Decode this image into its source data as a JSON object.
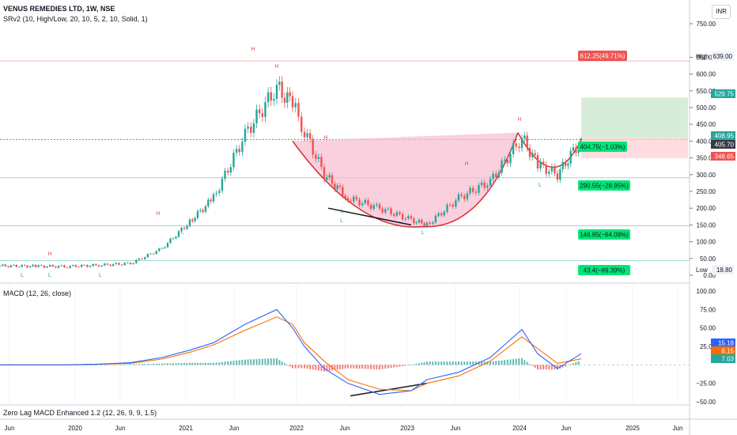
{
  "header": {
    "title": "VENUS REMEDIES LTD, 1W, NSE",
    "indicator": "SRv2 (10, High/Low, 20, 10, 5, 2, 10, Solid, 1)",
    "currency": "INR"
  },
  "macd_header": "MACD (12, 26, close)",
  "zlmacd_header": "Zero Lag MACD Enhanced 1.2 (12, 26, 9, 9, 1.5)",
  "colors": {
    "up": "#26a69a",
    "down": "#ef5350",
    "blue": "#2962ff",
    "orange": "#ff6d00",
    "cup": "#e91e63",
    "cup_fill": "#f8bbd0",
    "target_fill": "#c8e6c9",
    "stop_fill": "#ffcdd2"
  },
  "price_axis": {
    "ticks": [
      "750.00",
      "650.00",
      "600.00",
      "550.00",
      "500.00",
      "450.00",
      "400.00",
      "350.00",
      "300.00",
      "250.00",
      "200.00",
      "150.00",
      "100.00",
      "50.00",
      "0.00"
    ],
    "high_label": "High",
    "high_value": "639.00",
    "low_label": "Low",
    "low_value": "18.80",
    "tags": [
      {
        "value": "529.75",
        "color": "#26a69a"
      },
      {
        "value": "408.95",
        "color": "#26a69a"
      },
      {
        "value": "405.70",
        "color": "#363a45"
      },
      {
        "value": "348.65",
        "color": "#ef5350"
      },
      {
        "value": "15.18",
        "color": "#2962ff"
      },
      {
        "value": "8.15",
        "color": "#ff6d00"
      },
      {
        "value": "7.03",
        "color": "#26a69a"
      }
    ]
  },
  "macd_axis": {
    "ticks": [
      "100.00",
      "75.00",
      "50.00",
      "25.00",
      "−25.00",
      "−50.00"
    ]
  },
  "time_axis": [
    "Jun",
    "2020",
    "Jun",
    "2021",
    "Jun",
    "2022",
    "Jun",
    "2023",
    "Jun",
    "2024",
    "Jun",
    "2025",
    "Jun"
  ],
  "annotations": {
    "target": "612.25(49.71%)",
    "entry": "404.75(−1.03%)",
    "levels": [
      "290.55(−28.95%)",
      "146.85(−64.09%)",
      "43.4(−89.39%)"
    ],
    "high_markers": [
      "H",
      "H",
      "H",
      "H",
      "H",
      "H",
      "H"
    ],
    "low_markers": [
      "L",
      "L",
      "L",
      "L",
      "L",
      "L",
      "L",
      "L"
    ]
  },
  "chart_data": {
    "type": "line",
    "title": "VENUS REMEDIES LTD, 1W, NSE",
    "xlabel": "",
    "ylabel": "",
    "x": [
      "2019-06",
      "2019-09",
      "2019-12",
      "2020-03",
      "2020-06",
      "2020-09",
      "2020-12",
      "2021-03",
      "2021-06",
      "2021-08",
      "2021-10",
      "2021-12",
      "2022-03",
      "2022-06",
      "2022-09",
      "2022-12",
      "2023-03",
      "2023-06",
      "2023-09",
      "2023-12",
      "2024-03",
      "2024-05",
      "2024-07"
    ],
    "series": [
      {
        "values": [
          28,
          27,
          26,
          30,
          35,
          80,
          160,
          230,
          420,
          560,
          510,
          430,
          300,
          230,
          200,
          165,
          150,
          230,
          280,
          410,
          330,
          300,
          405
        ]
      }
    ],
    "ylim": [
      0,
      750
    ],
    "high": 639,
    "low": 18.8,
    "last": 405.7,
    "target": 612.25,
    "stop": 348.65,
    "entry": 404.75,
    "take_profit_zone": [
      408.95,
      529.75
    ],
    "macd": {
      "name": "MACD (12, 26, close)",
      "macd_line": [
        0,
        0,
        0,
        1,
        3,
        10,
        20,
        30,
        55,
        75,
        50,
        25,
        -5,
        -25,
        -40,
        -35,
        -20,
        -10,
        10,
        48,
        15,
        -5,
        15.18
      ],
      "signal_line": [
        0,
        0,
        0,
        1,
        2,
        8,
        17,
        27,
        47,
        65,
        55,
        30,
        5,
        -20,
        -33,
        -35,
        -25,
        -15,
        5,
        38,
        22,
        2,
        8.15
      ],
      "histogram_last": 7.03,
      "ylim": [
        -50,
        100
      ]
    }
  }
}
